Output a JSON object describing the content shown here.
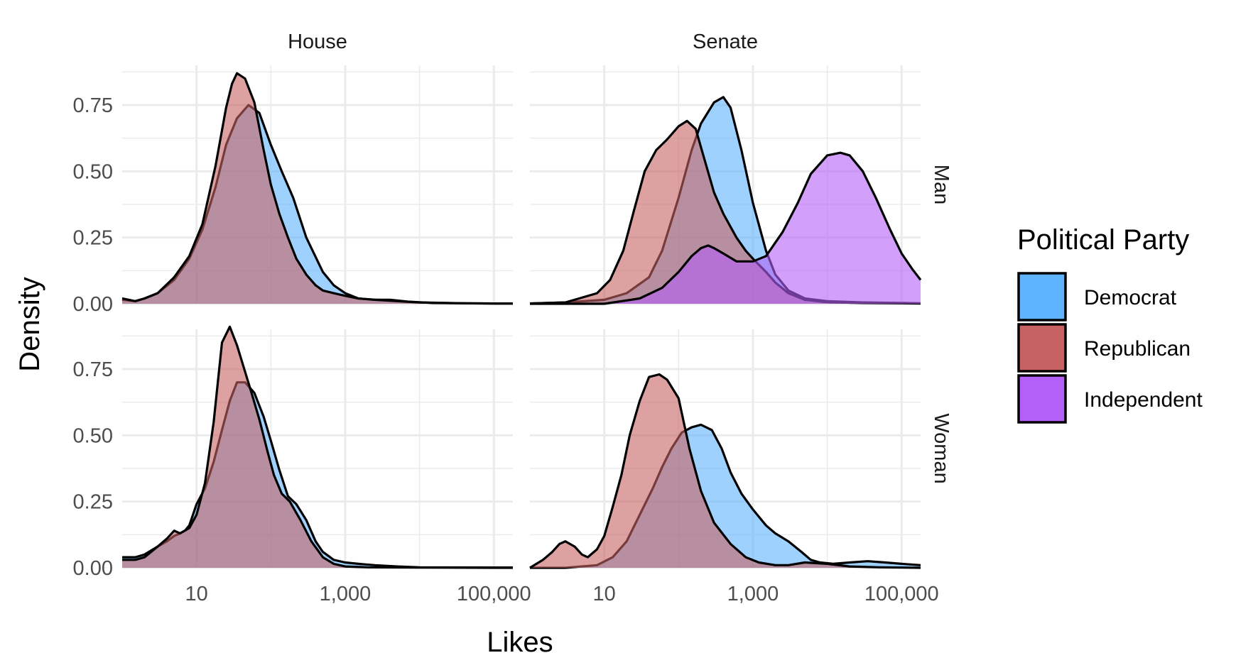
{
  "chart_data": {
    "type": "area",
    "xlabel": "Likes",
    "ylabel": "Density",
    "x_scale": "log10",
    "xlim": [
      1,
      180000
    ],
    "ylim": [
      0,
      0.9
    ],
    "x_ticks": [
      10,
      1000,
      100000
    ],
    "x_tick_labels": [
      "10",
      "1,000",
      "100,000"
    ],
    "y_ticks": [
      0,
      0.25,
      0.5,
      0.75
    ],
    "y_tick_labels": [
      "0.00",
      "0.25",
      "0.50",
      "0.75"
    ],
    "grid": true,
    "legend": {
      "title": "Political Party",
      "position": "right",
      "entries": [
        {
          "name": "Democrat",
          "color": "#5fb3ff"
        },
        {
          "name": "Republican",
          "color": "#c86262"
        },
        {
          "name": "Independent",
          "color": "#b45ff7"
        }
      ]
    },
    "panels": [
      {
        "column": "House",
        "row": "Man",
        "series": [
          {
            "name": "Democrat",
            "x": [
              1,
              1.5,
              2,
              3,
              5,
              8,
              12,
              18,
              25,
              35,
              50,
              70,
              100,
              140,
              200,
              300,
              500,
              700,
              1000,
              1500,
              2500,
              4000,
              7000,
              15000,
              40000,
              100000,
              180000
            ],
            "values": [
              0.015,
              0.01,
              0.02,
              0.04,
              0.09,
              0.17,
              0.28,
              0.44,
              0.6,
              0.7,
              0.75,
              0.72,
              0.6,
              0.5,
              0.4,
              0.25,
              0.12,
              0.07,
              0.04,
              0.02,
              0.015,
              0.015,
              0.008,
              0.003,
              0.002,
              0.001,
              0.001
            ]
          },
          {
            "name": "Republican",
            "x": [
              1,
              1.5,
              2,
              3,
              5,
              8,
              12,
              18,
              25,
              30,
              35,
              45,
              60,
              80,
              100,
              130,
              170,
              220,
              300,
              400,
              500,
              700,
              1000,
              1500,
              2500,
              5000,
              10000,
              40000,
              100000,
              180000
            ],
            "values": [
              0.02,
              0.01,
              0.02,
              0.04,
              0.1,
              0.18,
              0.3,
              0.52,
              0.74,
              0.83,
              0.87,
              0.85,
              0.76,
              0.58,
              0.45,
              0.34,
              0.25,
              0.17,
              0.11,
              0.07,
              0.05,
              0.04,
              0.03,
              0.02,
              0.015,
              0.01,
              0.005,
              0.002,
              0.001,
              0.001
            ]
          }
        ]
      },
      {
        "column": "Senate",
        "row": "Man",
        "series": [
          {
            "name": "Democrat",
            "x": [
              1,
              3,
              10,
              20,
              40,
              60,
              100,
              150,
              200,
              300,
              400,
              500,
              700,
              1000,
              1500,
              2000,
              3000,
              5000,
              10000,
              30000,
              100000,
              180000
            ],
            "values": [
              0.001,
              0.005,
              0.015,
              0.04,
              0.1,
              0.2,
              0.4,
              0.58,
              0.68,
              0.76,
              0.78,
              0.74,
              0.58,
              0.38,
              0.2,
              0.11,
              0.05,
              0.02,
              0.01,
              0.005,
              0.003,
              0.002
            ]
          },
          {
            "name": "Republican",
            "x": [
              1,
              3,
              8,
              12,
              18,
              25,
              35,
              50,
              70,
              100,
              130,
              170,
              220,
              300,
              400,
              500,
              600,
              800,
              1000,
              1500,
              2000,
              3000,
              5000,
              10000,
              30000,
              100000,
              180000
            ],
            "values": [
              0.001,
              0.005,
              0.04,
              0.09,
              0.2,
              0.35,
              0.5,
              0.58,
              0.62,
              0.67,
              0.69,
              0.66,
              0.55,
              0.42,
              0.34,
              0.29,
              0.25,
              0.2,
              0.17,
              0.12,
              0.08,
              0.04,
              0.015,
              0.006,
              0.003,
              0.002,
              0.001
            ]
          },
          {
            "name": "Independent",
            "x": [
              1,
              10,
              30,
              60,
              100,
              150,
              200,
              250,
              300,
              400,
              600,
              1000,
              1500,
              2500,
              4000,
              6000,
              10000,
              15000,
              20000,
              30000,
              45000,
              70000,
              100000,
              140000,
              180000
            ],
            "values": [
              0.0,
              0.0,
              0.02,
              0.06,
              0.12,
              0.18,
              0.21,
              0.22,
              0.21,
              0.19,
              0.16,
              0.16,
              0.18,
              0.27,
              0.38,
              0.49,
              0.56,
              0.57,
              0.56,
              0.5,
              0.4,
              0.28,
              0.19,
              0.13,
              0.09
            ]
          }
        ]
      },
      {
        "column": "House",
        "row": "Woman",
        "series": [
          {
            "name": "Democrat",
            "x": [
              1,
              1.5,
              2,
              3,
              4,
              5,
              6,
              7,
              8,
              10,
              13,
              17,
              22,
              28,
              35,
              45,
              60,
              80,
              100,
              130,
              170,
              220,
              300,
              400,
              500,
              700,
              1000,
              1500,
              2500,
              5000,
              10000,
              100000,
              180000
            ],
            "values": [
              0.04,
              0.04,
              0.05,
              0.08,
              0.1,
              0.12,
              0.13,
              0.14,
              0.16,
              0.24,
              0.3,
              0.4,
              0.52,
              0.63,
              0.7,
              0.7,
              0.66,
              0.57,
              0.48,
              0.37,
              0.27,
              0.24,
              0.18,
              0.1,
              0.06,
              0.03,
              0.02,
              0.015,
              0.01,
              0.005,
              0.002,
              0.001,
              0.001
            ]
          },
          {
            "name": "Republican",
            "x": [
              1,
              1.5,
              2,
              3,
              4,
              5,
              6,
              8,
              10,
              13,
              17,
              22,
              28,
              35,
              45,
              55,
              70,
              90,
              110,
              140,
              180,
              250,
              350,
              500,
              700,
              1000,
              2000,
              10000,
              100000,
              180000
            ],
            "values": [
              0.03,
              0.03,
              0.04,
              0.08,
              0.11,
              0.14,
              0.13,
              0.15,
              0.2,
              0.32,
              0.55,
              0.85,
              0.91,
              0.84,
              0.74,
              0.66,
              0.56,
              0.44,
              0.35,
              0.28,
              0.25,
              0.18,
              0.1,
              0.04,
              0.015,
              0.005,
              0.002,
              0.001,
              0.0,
              0.0
            ]
          }
        ]
      },
      {
        "column": "Senate",
        "row": "Woman",
        "series": [
          {
            "name": "Democrat",
            "x": [
              1,
              3,
              8,
              13,
              20,
              30,
              45,
              60,
              80,
              110,
              150,
              200,
              280,
              380,
              500,
              700,
              1000,
              1500,
              2000,
              3000,
              4500,
              6000,
              8000,
              12000,
              20000,
              35000,
              60000,
              100000,
              180000
            ],
            "values": [
              0.0,
              0.0,
              0.01,
              0.04,
              0.1,
              0.2,
              0.3,
              0.38,
              0.45,
              0.51,
              0.53,
              0.54,
              0.52,
              0.45,
              0.36,
              0.28,
              0.22,
              0.16,
              0.13,
              0.1,
              0.06,
              0.03,
              0.02,
              0.015,
              0.02,
              0.025,
              0.02,
              0.015,
              0.01
            ]
          },
          {
            "name": "Republican",
            "x": [
              1,
              1.5,
              2,
              2.5,
              3,
              4,
              5,
              6,
              8,
              10,
              13,
              17,
              22,
              30,
              40,
              55,
              70,
              100,
              140,
              200,
              300,
              500,
              800,
              1200,
              2000,
              3000,
              5000,
              10000,
              20000,
              50000,
              180000
            ],
            "values": [
              0.0,
              0.03,
              0.06,
              0.09,
              0.1,
              0.08,
              0.05,
              0.04,
              0.07,
              0.12,
              0.23,
              0.35,
              0.5,
              0.63,
              0.72,
              0.73,
              0.71,
              0.64,
              0.45,
              0.29,
              0.17,
              0.09,
              0.04,
              0.02,
              0.01,
              0.01,
              0.02,
              0.015,
              0.005,
              0.002,
              0.0
            ]
          }
        ]
      }
    ],
    "facet_columns": [
      "House",
      "Senate"
    ],
    "facet_rows": [
      "Man",
      "Woman"
    ]
  }
}
